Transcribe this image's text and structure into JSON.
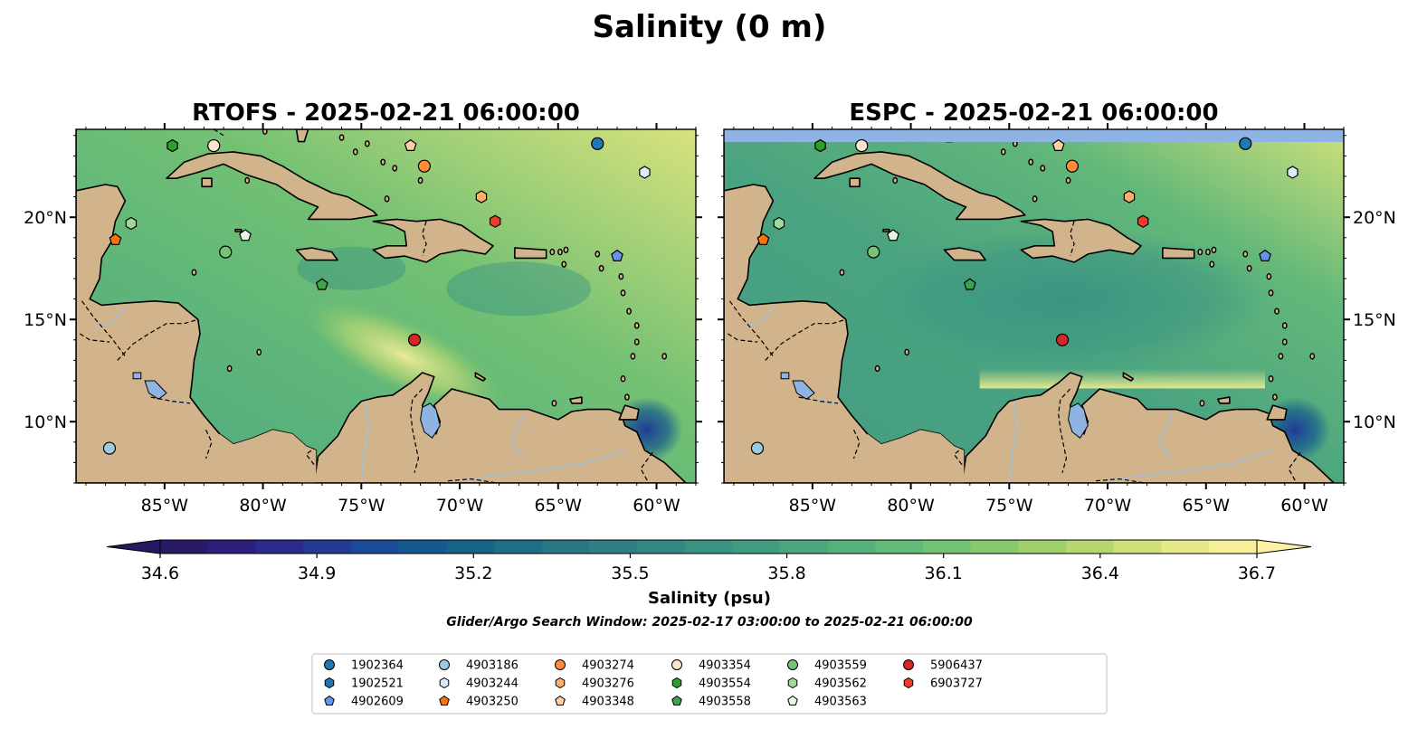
{
  "figure": {
    "title": "Salinity (0 m)",
    "search_window": "Glider/Argo Search Window: 2025-02-17 03:00:00 to 2025-02-21 06:00:00"
  },
  "panels": [
    {
      "title": "RTOFS - 2025-02-21 06:00:00",
      "model": "RTOFS"
    },
    {
      "title": "ESPC - 2025-02-21 06:00:00",
      "model": "ESPC"
    }
  ],
  "map": {
    "lon_range": [
      -89.5,
      -58.0
    ],
    "lat_range": [
      7.0,
      24.3
    ],
    "lon_ticks": [
      {
        "value": -85,
        "label": "85°W"
      },
      {
        "value": -80,
        "label": "80°W"
      },
      {
        "value": -75,
        "label": "75°W"
      },
      {
        "value": -70,
        "label": "70°W"
      },
      {
        "value": -65,
        "label": "65°W"
      },
      {
        "value": -60,
        "label": "60°W"
      }
    ],
    "lat_ticks": [
      {
        "value": 10,
        "label": "10°N"
      },
      {
        "value": 15,
        "label": "15°N"
      },
      {
        "value": 20,
        "label": "20°N"
      }
    ],
    "colors": {
      "land": "#d2b48c",
      "lake": "#8fb4e3",
      "river": "#a8bfd8",
      "pacific": "#2a1a66",
      "coast": "#000000"
    }
  },
  "colorbar": {
    "label": "Salinity (psu)",
    "min": 34.6,
    "max": 36.7,
    "ticks": [
      {
        "value": 34.6,
        "label": "34.6"
      },
      {
        "value": 34.9,
        "label": "34.9"
      },
      {
        "value": 35.2,
        "label": "35.2"
      },
      {
        "value": 35.5,
        "label": "35.5"
      },
      {
        "value": 35.8,
        "label": "35.8"
      },
      {
        "value": 36.1,
        "label": "36.1"
      },
      {
        "value": 36.4,
        "label": "36.4"
      },
      {
        "value": 36.7,
        "label": "36.7"
      }
    ],
    "colors": [
      "#2a1a66",
      "#2c1f7a",
      "#2a2b8c",
      "#223a96",
      "#1b4b98",
      "#16598f",
      "#166388",
      "#1e6e85",
      "#2a7684",
      "#317f84",
      "#358783",
      "#3a9283",
      "#429c82",
      "#4ba680",
      "#56b07c",
      "#64ba78",
      "#74c273",
      "#87c96e",
      "#9ed06c",
      "#b6d76f",
      "#cfe078",
      "#e6e98a",
      "#f5ee9a"
    ],
    "extend_low": "#231a60",
    "extend_high": "#fbf1a6"
  },
  "legend": {
    "entries": [
      {
        "id": "1902364",
        "color": "#1f77b4",
        "marker": "circle",
        "lon": -63.0,
        "lat": 23.6
      },
      {
        "id": "1902521",
        "color": "#1f77b4",
        "marker": "hexagon",
        "lon": null,
        "lat": null
      },
      {
        "id": "4902609",
        "color": "#6495ed",
        "marker": "pentagon",
        "lon": -62.0,
        "lat": 18.1
      },
      {
        "id": "4903186",
        "color": "#9ecae1",
        "marker": "circle",
        "lon": -87.8,
        "lat": 8.7
      },
      {
        "id": "4903244",
        "color": "#deebf7",
        "marker": "hexagon",
        "lon": -60.6,
        "lat": 22.2
      },
      {
        "id": "4903250",
        "color": "#f97306",
        "marker": "pentagon",
        "lon": -87.5,
        "lat": 18.9
      },
      {
        "id": "4903274",
        "color": "#fd8d3c",
        "marker": "circle",
        "lon": -71.8,
        "lat": 22.5
      },
      {
        "id": "4903276",
        "color": "#fdae6b",
        "marker": "hexagon",
        "lon": -68.9,
        "lat": 21.0
      },
      {
        "id": "4903348",
        "color": "#fdd0a2",
        "marker": "pentagon",
        "lon": -72.5,
        "lat": 23.5
      },
      {
        "id": "4903354",
        "color": "#fde4cc",
        "marker": "circle",
        "lon": -82.5,
        "lat": 23.5
      },
      {
        "id": "4903554",
        "color": "#2ca02c",
        "marker": "hexagon",
        "lon": -84.6,
        "lat": 23.5
      },
      {
        "id": "4903558",
        "color": "#3fa34d",
        "marker": "pentagon",
        "lon": -77.0,
        "lat": 16.7
      },
      {
        "id": "4903559",
        "color": "#74c476",
        "marker": "circle",
        "lon": -81.9,
        "lat": 18.3
      },
      {
        "id": "4903562",
        "color": "#a1d99b",
        "marker": "hexagon",
        "lon": -86.7,
        "lat": 19.7
      },
      {
        "id": "4903563",
        "color": "#e5f5e0",
        "marker": "pentagon",
        "lon": -80.9,
        "lat": 19.1
      },
      {
        "id": "5906437",
        "color": "#d62728",
        "marker": "circle",
        "lon": -72.3,
        "lat": 14.0
      },
      {
        "id": "6903727",
        "color": "#ef3b2c",
        "marker": "hexagon",
        "lon": -68.2,
        "lat": 19.8
      }
    ]
  }
}
